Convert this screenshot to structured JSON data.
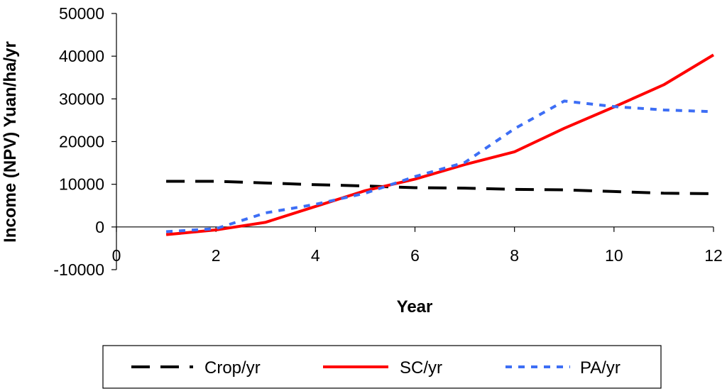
{
  "chart_data": {
    "type": "line",
    "xlabel": "Year",
    "ylabel": "Income (NPV) Yuan/ha/yr",
    "xlim": [
      0,
      12
    ],
    "ylim": [
      -10000,
      50000
    ],
    "x_ticks": [
      0,
      2,
      4,
      6,
      8,
      10,
      12
    ],
    "y_ticks": [
      -10000,
      0,
      10000,
      20000,
      30000,
      40000,
      50000
    ],
    "grid": false,
    "legend_position": "bottom",
    "x": [
      1,
      2,
      3,
      4,
      5,
      6,
      7,
      8,
      9,
      10,
      11,
      12
    ],
    "series": [
      {
        "name": "Crop/yr",
        "color": "#000000",
        "style": "dashed",
        "values": [
          10700,
          10700,
          10300,
          9900,
          9600,
          9200,
          9100,
          8800,
          8700,
          8300,
          7900,
          7800
        ]
      },
      {
        "name": "SC/yr",
        "color": "#ff0000",
        "style": "solid",
        "values": [
          -1800,
          -700,
          1100,
          4800,
          8500,
          11200,
          14600,
          17600,
          23100,
          28100,
          33300,
          40300
        ]
      },
      {
        "name": "PA/yr",
        "color": "#3d6ef5",
        "style": "dotted",
        "values": [
          -1100,
          -400,
          3300,
          5300,
          7900,
          11800,
          15100,
          23000,
          29500,
          28200,
          27400,
          27000
        ]
      }
    ]
  }
}
